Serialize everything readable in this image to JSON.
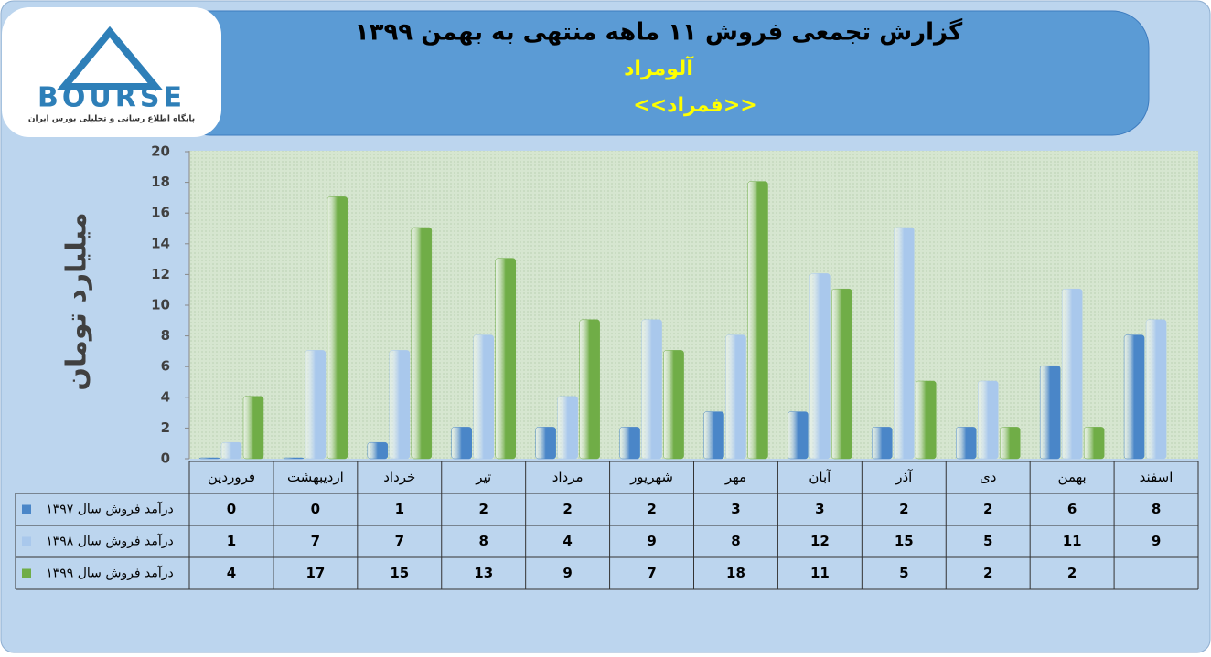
{
  "logo": {
    "text": "BOURSE",
    "tagline": "پایگاه اطلاع رسانی و تحلیلی بورس ایران"
  },
  "chart_data": {
    "type": "bar",
    "title": "گزارش تجمعی فروش ۱۱ ماهه منتهی به بهمن ۱۳۹۹",
    "subtitle": "آلومراد",
    "symbol": "<<فمراد>>",
    "y_label": "میلیارد تومان",
    "categories": [
      "فروردین",
      "اردیبهشت",
      "خرداد",
      "تیر",
      "مرداد",
      "شهریور",
      "مهر",
      "آبان",
      "آذر",
      "دی",
      "بهمن",
      "اسفند"
    ],
    "series": [
      {
        "name": "درآمد فروش سال ۱۳۹۷",
        "color": "#4a86c8",
        "values": [
          0,
          0,
          1,
          2,
          2,
          2,
          3,
          3,
          2,
          2,
          6,
          8
        ]
      },
      {
        "name": "درآمد فروش سال ۱۳۹۸",
        "color": "#a9c8ec",
        "values": [
          1,
          7,
          7,
          8,
          4,
          9,
          8,
          12,
          15,
          5,
          11,
          9
        ]
      },
      {
        "name": "درآمد فروش سال ۱۳۹۹",
        "color": "#70ad47",
        "values": [
          4,
          17,
          15,
          13,
          9,
          7,
          18,
          11,
          5,
          2,
          2,
          null
        ]
      }
    ],
    "ylim": [
      0,
      20
    ],
    "yticks": [
      0,
      2,
      4,
      6,
      8,
      10,
      12,
      14,
      16,
      18,
      20
    ]
  }
}
